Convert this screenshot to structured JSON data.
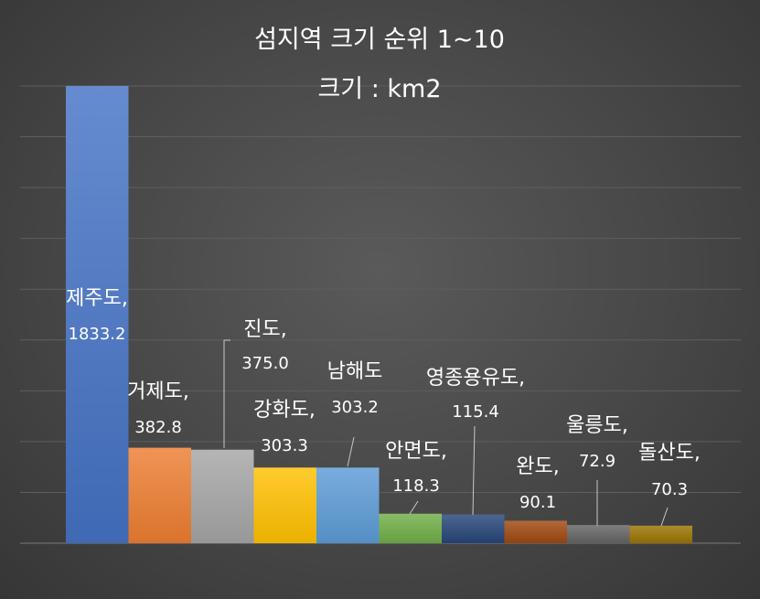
{
  "chart_data": {
    "type": "bar",
    "title": "섬지역 크기 순위 1~10",
    "subtitle": "크기 : km2",
    "categories": [
      "제주도",
      "거제도",
      "진도",
      "강화도",
      "남해도",
      "안면도",
      "영종용유도",
      "완도",
      "울릉도",
      "돌산도"
    ],
    "values": [
      1833.2,
      382.8,
      375.0,
      303.3,
      303.2,
      118.3,
      115.4,
      90.1,
      72.9,
      70.3
    ],
    "data_labels": [
      {
        "name": "제주도,",
        "value": "1833.2"
      },
      {
        "name": "거제도,",
        "value": "382.8"
      },
      {
        "name": "진도,",
        "value": "375.0"
      },
      {
        "name": "강화도,",
        "value": "303.3"
      },
      {
        "name": "남해도",
        "value": "303.2"
      },
      {
        "name": "안면도,",
        "value": "118.3"
      },
      {
        "name": "영종용유도,",
        "value": "115.4"
      },
      {
        "name": "완도,",
        "value": "90.1"
      },
      {
        "name": "울릉도,",
        "value": "72.9"
      },
      {
        "name": "돌산도,",
        "value": "70.3"
      }
    ],
    "colors": [
      "#4472C4",
      "#ED7D31",
      "#A5A5A5",
      "#FFC000",
      "#5B9BD5",
      "#70AD47",
      "#264478",
      "#9E480E",
      "#636363",
      "#997300"
    ],
    "ylim": [
      0,
      1833.2
    ],
    "grid": true,
    "legend": "none"
  }
}
